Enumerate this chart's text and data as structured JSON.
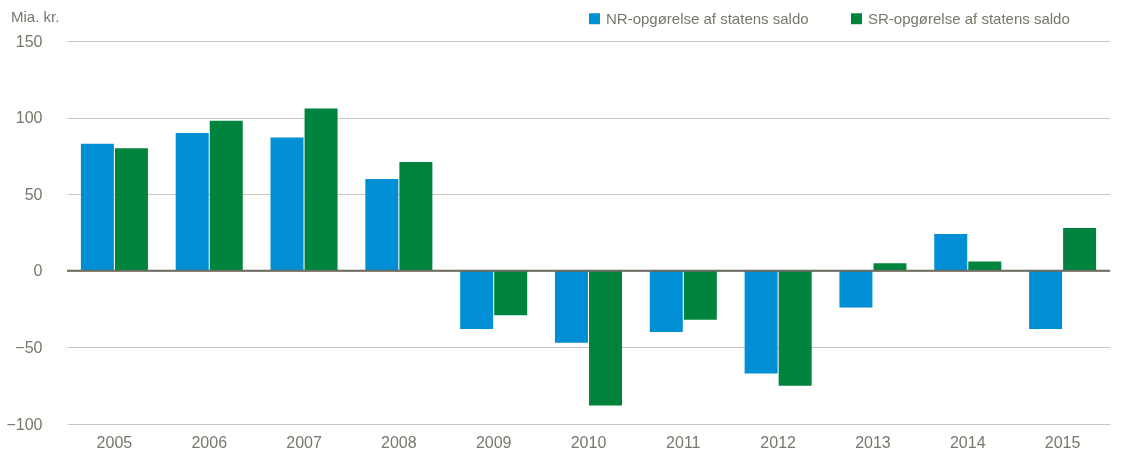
{
  "chart_data": {
    "type": "bar",
    "ylabel": "Mia. kr.",
    "categories": [
      "2005",
      "2006",
      "2007",
      "2008",
      "2009",
      "2010",
      "2011",
      "2012",
      "2013",
      "2014",
      "2015"
    ],
    "series": [
      {
        "name": "NR-opgørelse af statens saldo",
        "color": "#008fd5",
        "values": [
          83,
          90,
          87,
          60,
          -38,
          -47,
          -40,
          -67,
          -24,
          24,
          -38
        ]
      },
      {
        "name": "SR-opgørelse af statens saldo",
        "color": "#00843d",
        "values": [
          80,
          98,
          106,
          71,
          -29,
          -88,
          -32,
          -75,
          5,
          6,
          28
        ]
      }
    ],
    "ylim": [
      -100,
      150
    ],
    "yticks": [
      -100,
      -50,
      0,
      50,
      100,
      150
    ],
    "grid": "y",
    "legend": "top right"
  }
}
